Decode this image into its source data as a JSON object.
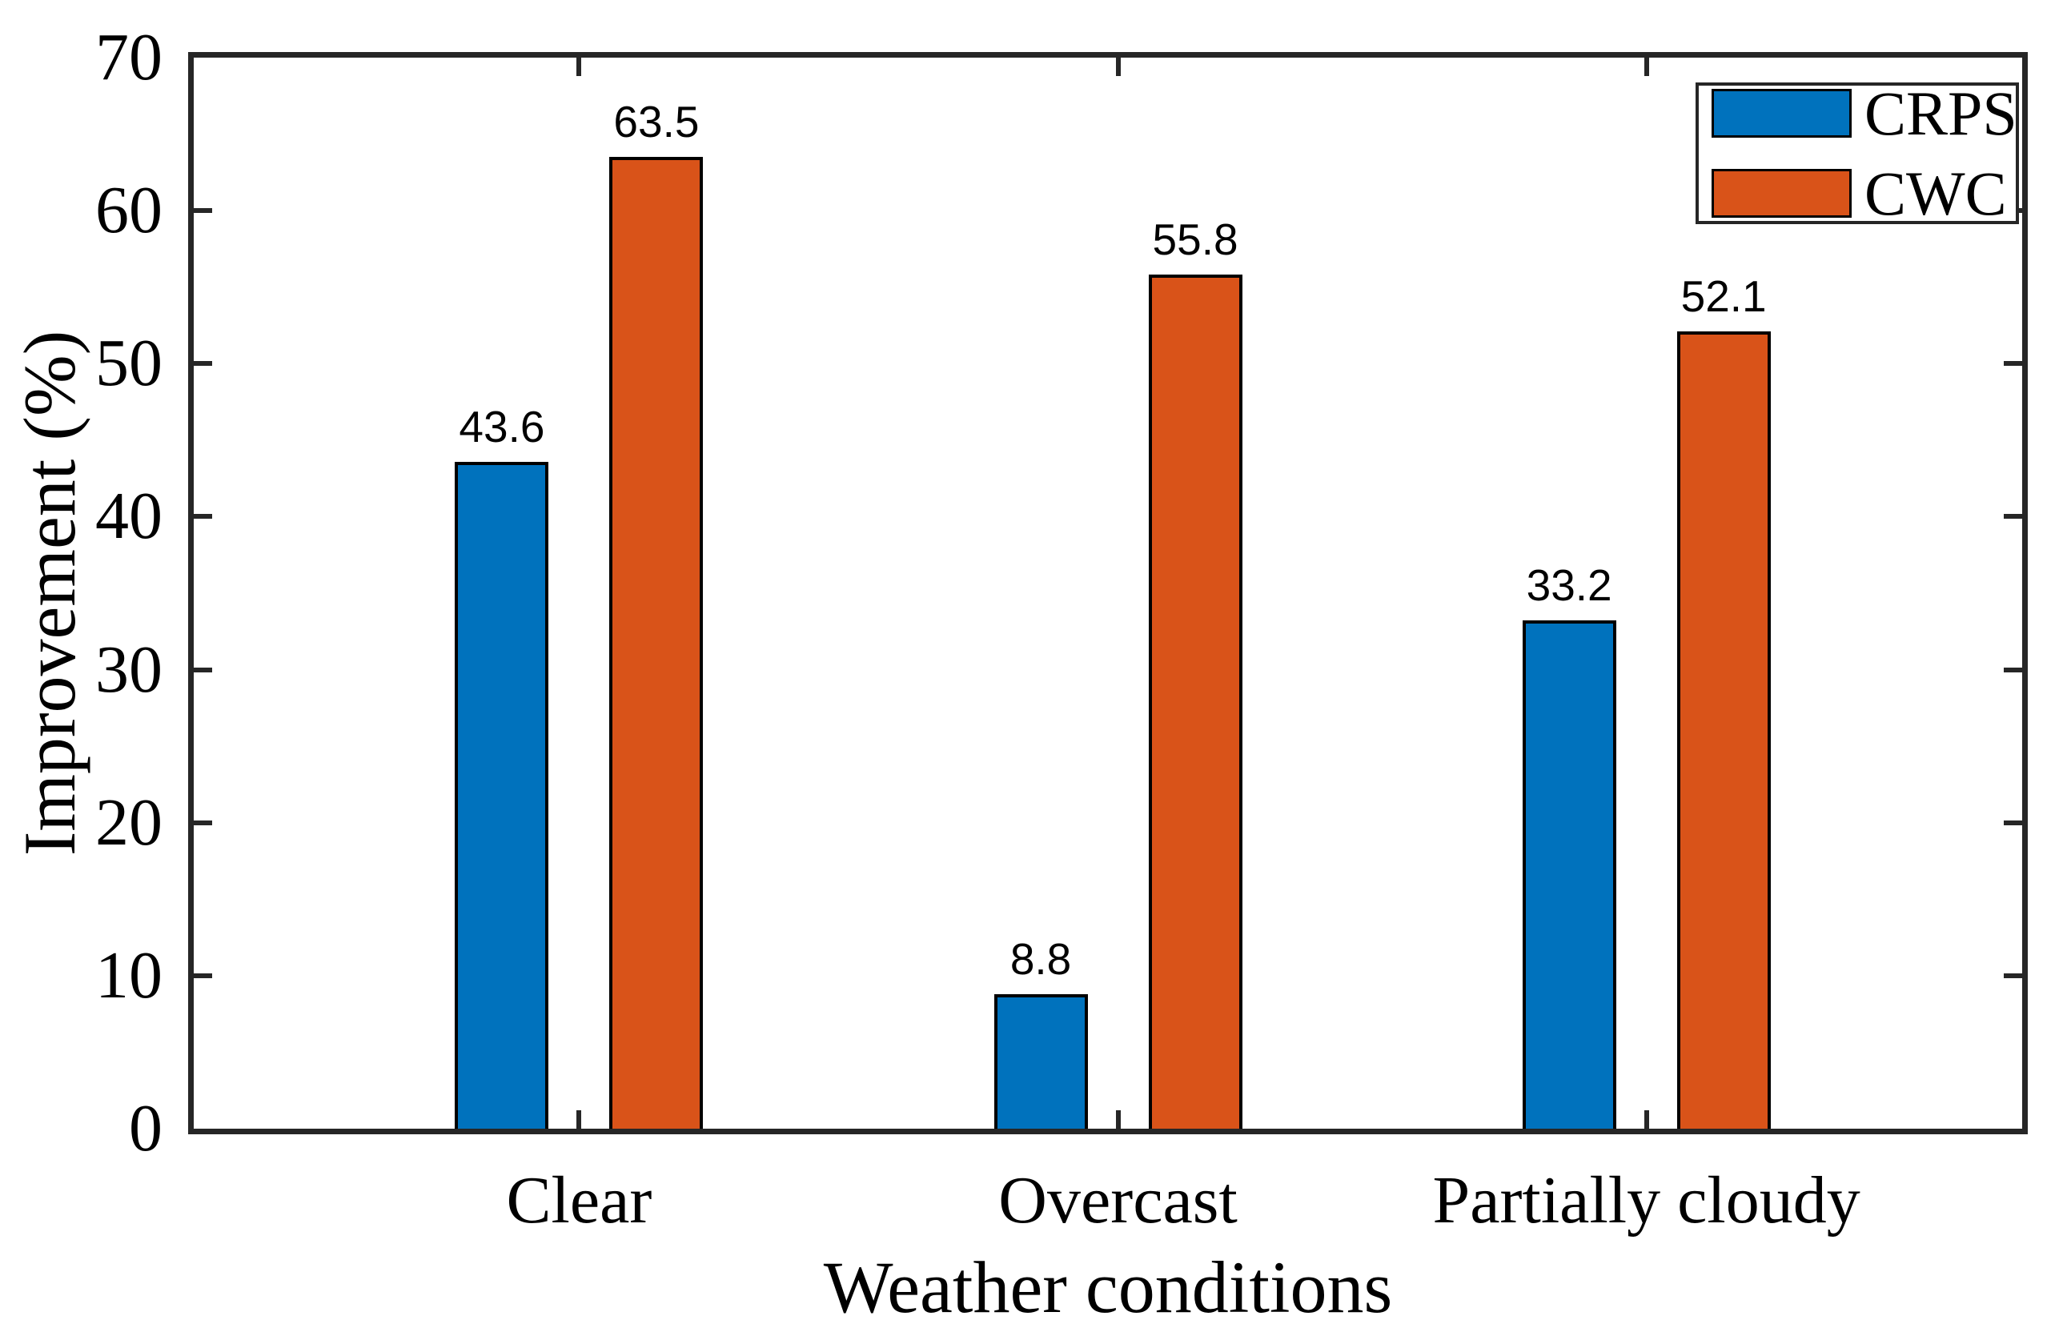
{
  "chart_data": {
    "type": "bar",
    "title": "",
    "xlabel": "Weather conditions",
    "ylabel": "Improvement (%)",
    "categories": [
      "Clear",
      "Overcast",
      "Partially cloudy"
    ],
    "series": [
      {
        "name": "CRPS",
        "color": "#0072BD",
        "values": [
          43.6,
          8.8,
          33.2
        ]
      },
      {
        "name": "CWC",
        "color": "#D95319",
        "values": [
          63.5,
          55.8,
          52.1
        ]
      }
    ],
    "bar_value_labels": [
      "43.6",
      "63.5",
      "8.8",
      "55.8",
      "33.2",
      "52.1"
    ],
    "ylim": [
      0,
      70
    ],
    "yticks": [
      0,
      10,
      20,
      30,
      40,
      50,
      60,
      70
    ],
    "grid": false,
    "legend_position": "top-right",
    "axis_color": "#262626",
    "bar_edge_color": "#000000",
    "background_color": "#ffffff"
  }
}
